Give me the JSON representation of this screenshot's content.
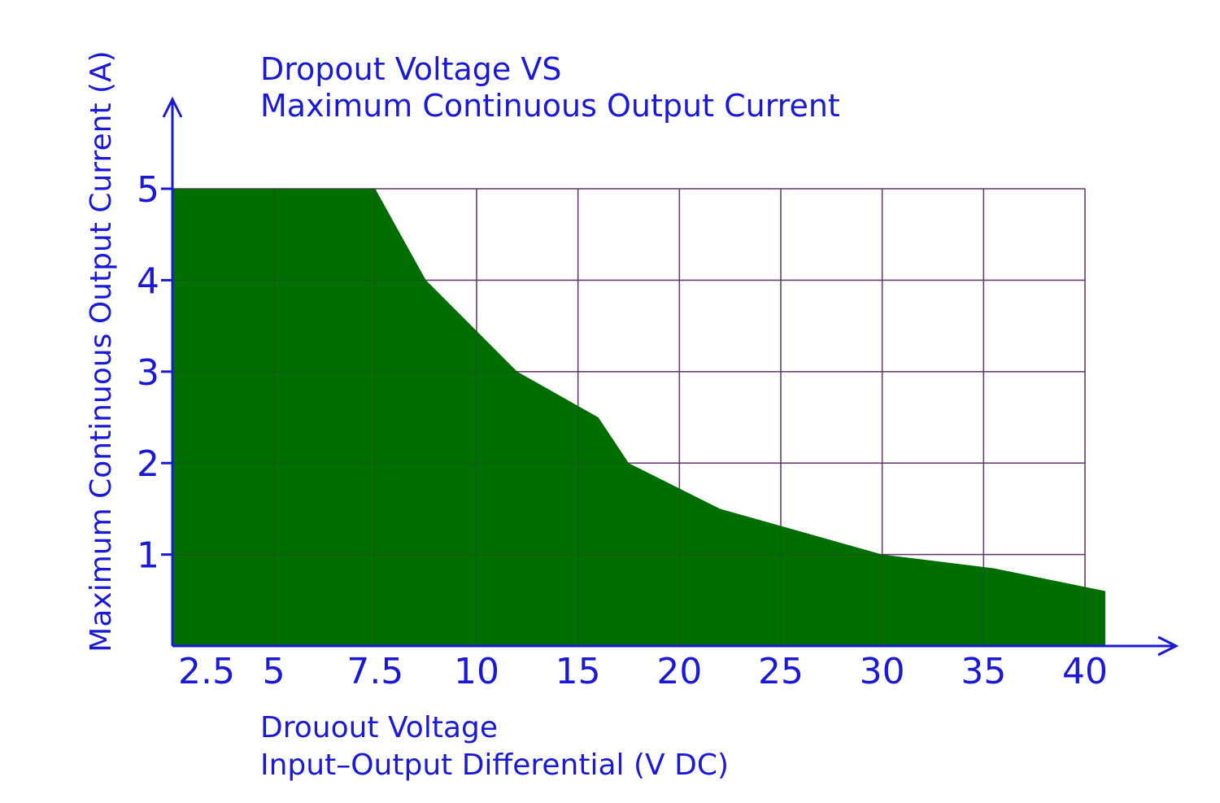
{
  "chart_data": {
    "type": "area",
    "title_lines": [
      "Dropout  Voltage  VS",
      "Maximum  Continuous  Output  Current"
    ],
    "xlabel_lines": [
      "Drouout  Voltage",
      "Input–Output  Differential  (V DC)"
    ],
    "ylabel": "Maximum  Continuous  Output  Current  (A)",
    "x_ticks": [
      "2.5",
      "5",
      "7.5",
      "10",
      "15",
      "20",
      "25",
      "30",
      "35",
      "40"
    ],
    "y_ticks": [
      "1",
      "2",
      "3",
      "4",
      "5"
    ],
    "ylim": [
      0,
      5
    ],
    "grid": true,
    "series": [
      {
        "x": [
          "2.5",
          "5",
          "7.5",
          "10",
          "15",
          "20",
          "25",
          "30",
          "35"
        ],
        "points": [
          {
            "x_index": 0,
            "y": 5
          },
          {
            "x_index": 2,
            "y": 5
          },
          {
            "x_index": 2.5,
            "y": 4
          },
          {
            "x_index": 3.4,
            "y": 3
          },
          {
            "x_index": 4.2,
            "y": 2.5
          },
          {
            "x_index": 4.5,
            "y": 2
          },
          {
            "x_index": 5.4,
            "y": 1.5
          },
          {
            "x_index": 7,
            "y": 1
          },
          {
            "x_index": 8.1,
            "y": 0.85
          },
          {
            "x_index": 9.2,
            "y": 0.6
          }
        ],
        "color": "#006e00"
      }
    ],
    "colors": {
      "fill": "#006e00",
      "grid": "#9b3aa5",
      "axis": "#1a1ad6",
      "text": "#1a1ad6"
    }
  }
}
